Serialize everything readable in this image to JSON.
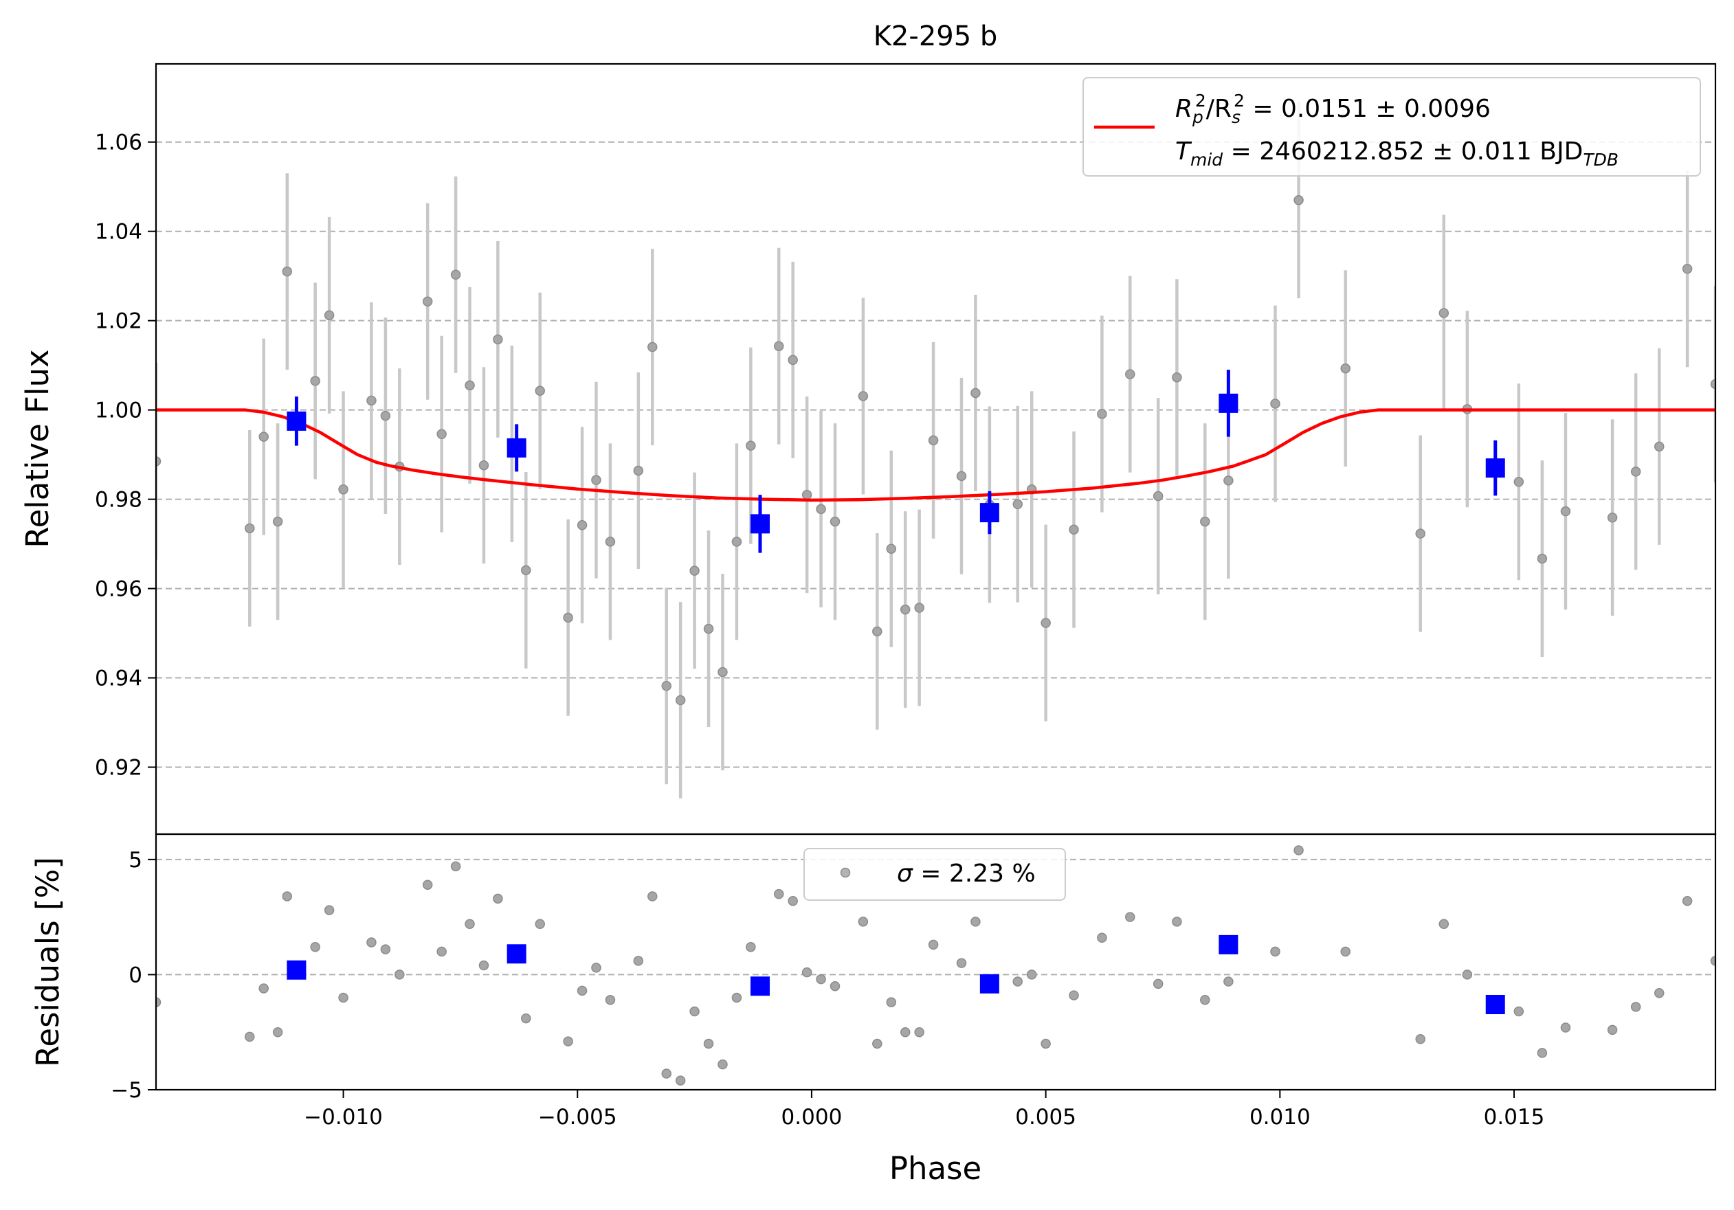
{
  "chart_data": {
    "type": "scatter",
    "title": "K2-295 b",
    "xlabel": "Phase",
    "xlim": [
      -0.014,
      0.0193
    ],
    "x_ticks": [
      -0.01,
      -0.005,
      0.0,
      0.005,
      0.01,
      0.015
    ],
    "x_tick_labels": [
      "−0.010",
      "−0.005",
      "0.000",
      "0.005",
      "0.010",
      "0.015"
    ],
    "grid": "horizontal dashed",
    "top_panel": {
      "ylabel": "Relative Flux",
      "ylim": [
        0.905,
        1.0775
      ],
      "y_ticks": [
        0.92,
        0.94,
        0.96,
        0.98,
        1.0,
        1.02,
        1.04,
        1.06
      ],
      "y_tick_labels": [
        "0.92",
        "0.94",
        "0.96",
        "0.98",
        "1.00",
        "1.02",
        "1.04",
        "1.06"
      ],
      "legend": {
        "placement": "top-right",
        "line1": {
          "a": "R",
          "b": "p",
          "c": "2",
          "d": "/R",
          "e": "s",
          "f": "2",
          "g": " = 0.0151 ± 0.0096"
        },
        "line2": {
          "a": "T",
          "b": "mid",
          "c": " = 2460212.852 ± 0.011 BJD",
          "d": "TDB"
        }
      },
      "model": {
        "color": "#ff0000",
        "x": [
          -0.014,
          -0.0121,
          -0.0117,
          -0.0113,
          -0.0109,
          -0.0105,
          -0.0101,
          -0.0097,
          -0.0093,
          -0.009,
          -0.0085,
          -0.008,
          -0.0075,
          -0.007,
          -0.006,
          -0.005,
          -0.004,
          -0.003,
          -0.002,
          -0.001,
          0.0,
          0.001,
          0.002,
          0.003,
          0.004,
          0.005,
          0.006,
          0.007,
          0.0075,
          0.008,
          0.0085,
          0.009,
          0.0093,
          0.0097,
          0.0101,
          0.0105,
          0.0109,
          0.0113,
          0.0117,
          0.0121,
          0.0193
        ],
        "y": [
          1.0,
          1.0,
          0.9995,
          0.9985,
          0.997,
          0.995,
          0.9925,
          0.99,
          0.9883,
          0.9875,
          0.9865,
          0.9857,
          0.985,
          0.9844,
          0.9833,
          0.9823,
          0.9815,
          0.9808,
          0.9803,
          0.98,
          0.9798,
          0.9799,
          0.9802,
          0.9806,
          0.9811,
          0.9817,
          0.9825,
          0.9836,
          0.9843,
          0.9852,
          0.9862,
          0.9874,
          0.9885,
          0.99,
          0.9925,
          0.995,
          0.997,
          0.9985,
          0.9995,
          1.0,
          1.0
        ]
      },
      "unbinned": {
        "color": "#808080",
        "yerr": 0.022,
        "points": [
          [
            -0.014,
            0.9885
          ],
          [
            -0.012,
            0.9735
          ],
          [
            -0.0117,
            0.994
          ],
          [
            -0.0114,
            0.975
          ],
          [
            -0.0112,
            1.031
          ],
          [
            -0.0106,
            1.0065
          ],
          [
            -0.0103,
            1.0212
          ],
          [
            -0.01,
            0.9822
          ],
          [
            -0.0094,
            1.0021
          ],
          [
            -0.0091,
            0.9987
          ],
          [
            -0.0088,
            0.9873
          ],
          [
            -0.0082,
            1.0243
          ],
          [
            -0.0079,
            0.9946
          ],
          [
            -0.0076,
            1.0303
          ],
          [
            -0.0073,
            1.0055
          ],
          [
            -0.007,
            0.9876
          ],
          [
            -0.0067,
            1.0158
          ],
          [
            -0.0064,
            0.9924
          ],
          [
            -0.0061,
            0.9641
          ],
          [
            -0.0058,
            1.0043
          ],
          [
            -0.0052,
            0.9535
          ],
          [
            -0.0049,
            0.9742
          ],
          [
            -0.0046,
            0.9843
          ],
          [
            -0.0043,
            0.9705
          ],
          [
            -0.0037,
            0.9864
          ],
          [
            -0.0034,
            1.0141
          ],
          [
            -0.0031,
            0.9382
          ],
          [
            -0.0028,
            0.935
          ],
          [
            -0.0025,
            0.964
          ],
          [
            -0.0022,
            0.951
          ],
          [
            -0.0019,
            0.9413
          ],
          [
            -0.0016,
            0.9705
          ],
          [
            -0.0013,
            0.992
          ],
          [
            -0.0007,
            1.0143
          ],
          [
            -0.0004,
            1.0112
          ],
          [
            -0.0001,
            0.981
          ],
          [
            0.0002,
            0.9778
          ],
          [
            0.0005,
            0.975
          ],
          [
            0.0011,
            1.0031
          ],
          [
            0.0014,
            0.9504
          ],
          [
            0.0017,
            0.9689
          ],
          [
            0.002,
            0.9553
          ],
          [
            0.0023,
            0.9557
          ],
          [
            0.0026,
            0.9932
          ],
          [
            0.0032,
            0.9852
          ],
          [
            0.0035,
            1.0038
          ],
          [
            0.0038,
            0.9788
          ],
          [
            0.0044,
            0.9789
          ],
          [
            0.0047,
            0.9822
          ],
          [
            0.005,
            0.9523
          ],
          [
            0.0056,
            0.9732
          ],
          [
            0.0062,
            0.9991
          ],
          [
            0.0068,
            1.008
          ],
          [
            0.0074,
            0.9807
          ],
          [
            0.0078,
            1.0073
          ],
          [
            0.0084,
            0.975
          ],
          [
            0.0089,
            0.9842
          ],
          [
            0.0099,
            1.0014
          ],
          [
            0.0104,
            1.047
          ],
          [
            0.0114,
            1.0093
          ],
          [
            0.013,
            0.9723
          ],
          [
            0.0135,
            1.0217
          ],
          [
            0.014,
            1.0002
          ],
          [
            0.0151,
            0.9839
          ],
          [
            0.0156,
            0.9667
          ],
          [
            0.0161,
            0.9773
          ],
          [
            0.0171,
            0.9759
          ],
          [
            0.0176,
            0.9862
          ],
          [
            0.0181,
            0.9918
          ],
          [
            0.0187,
            1.0316
          ],
          [
            0.0193,
            1.0058
          ]
        ]
      },
      "binned": {
        "color": "#0000ff",
        "points": [
          [
            -0.011,
            0.9975,
            0.0055
          ],
          [
            -0.0063,
            0.9915,
            0.0053
          ],
          [
            -0.0011,
            0.9745,
            0.0065
          ],
          [
            0.0038,
            0.977,
            0.0048
          ],
          [
            0.0089,
            1.0015,
            0.0075
          ],
          [
            0.0146,
            0.987,
            0.0062
          ]
        ]
      }
    },
    "bottom_panel": {
      "ylabel": "Residuals [%]",
      "ylim": [
        -5.0,
        6.1
      ],
      "y_ticks": [
        -5,
        0,
        5
      ],
      "y_tick_labels": [
        "−5",
        "0",
        "5"
      ],
      "legend": {
        "placement": "top-center",
        "sym": "σ",
        "text": " = 2.23 %"
      },
      "unbinned": {
        "color": "#808080",
        "points": [
          [
            -0.014,
            -1.2
          ],
          [
            -0.012,
            -2.7
          ],
          [
            -0.0117,
            -0.6
          ],
          [
            -0.0114,
            -2.5
          ],
          [
            -0.0112,
            3.4
          ],
          [
            -0.0106,
            1.2
          ],
          [
            -0.0103,
            2.8
          ],
          [
            -0.01,
            -1.0
          ],
          [
            -0.0094,
            1.4
          ],
          [
            -0.0091,
            1.1
          ],
          [
            -0.0088,
            0.0
          ],
          [
            -0.0082,
            3.9
          ],
          [
            -0.0079,
            1.0
          ],
          [
            -0.0076,
            4.7
          ],
          [
            -0.0073,
            2.2
          ],
          [
            -0.007,
            0.4
          ],
          [
            -0.0067,
            3.3
          ],
          [
            -0.0064,
            0.9
          ],
          [
            -0.0061,
            -1.9
          ],
          [
            -0.0058,
            2.2
          ],
          [
            -0.0052,
            -2.9
          ],
          [
            -0.0049,
            -0.7
          ],
          [
            -0.0046,
            0.3
          ],
          [
            -0.0043,
            -1.1
          ],
          [
            -0.0037,
            0.6
          ],
          [
            -0.0034,
            3.4
          ],
          [
            -0.0031,
            -4.3
          ],
          [
            -0.0028,
            -4.6
          ],
          [
            -0.0025,
            -1.6
          ],
          [
            -0.0022,
            -3.0
          ],
          [
            -0.0019,
            -3.9
          ],
          [
            -0.0016,
            -1.0
          ],
          [
            -0.0013,
            1.2
          ],
          [
            -0.0007,
            3.5
          ],
          [
            -0.0004,
            3.2
          ],
          [
            -0.0001,
            0.1
          ],
          [
            0.0002,
            -0.2
          ],
          [
            0.0005,
            -0.5
          ],
          [
            0.0011,
            2.3
          ],
          [
            0.0014,
            -3.0
          ],
          [
            0.0017,
            -1.2
          ],
          [
            0.002,
            -2.5
          ],
          [
            0.0023,
            -2.5
          ],
          [
            0.0026,
            1.3
          ],
          [
            0.0032,
            0.5
          ],
          [
            0.0035,
            2.3
          ],
          [
            0.0038,
            -0.3
          ],
          [
            0.0044,
            -0.3
          ],
          [
            0.0047,
            0.0
          ],
          [
            0.005,
            -3.0
          ],
          [
            0.0056,
            -0.9
          ],
          [
            0.0062,
            1.6
          ],
          [
            0.0068,
            2.5
          ],
          [
            0.0074,
            -0.4
          ],
          [
            0.0078,
            2.3
          ],
          [
            0.0084,
            -1.1
          ],
          [
            0.0089,
            -0.3
          ],
          [
            0.0099,
            1.0
          ],
          [
            0.0104,
            5.4
          ],
          [
            0.0114,
            1.0
          ],
          [
            0.013,
            -2.8
          ],
          [
            0.0135,
            2.2
          ],
          [
            0.014,
            0.0
          ],
          [
            0.0151,
            -1.6
          ],
          [
            0.0156,
            -3.4
          ],
          [
            0.0161,
            -2.3
          ],
          [
            0.0171,
            -2.4
          ],
          [
            0.0176,
            -1.4
          ],
          [
            0.0181,
            -0.8
          ],
          [
            0.0187,
            3.2
          ],
          [
            0.0193,
            0.6
          ]
        ]
      },
      "binned": {
        "color": "#0000ff",
        "points": [
          [
            -0.011,
            0.2
          ],
          [
            -0.0063,
            0.9
          ],
          [
            -0.0011,
            -0.5
          ],
          [
            0.0038,
            -0.4
          ],
          [
            0.0089,
            1.3
          ],
          [
            0.0146,
            -1.3
          ]
        ]
      }
    }
  }
}
